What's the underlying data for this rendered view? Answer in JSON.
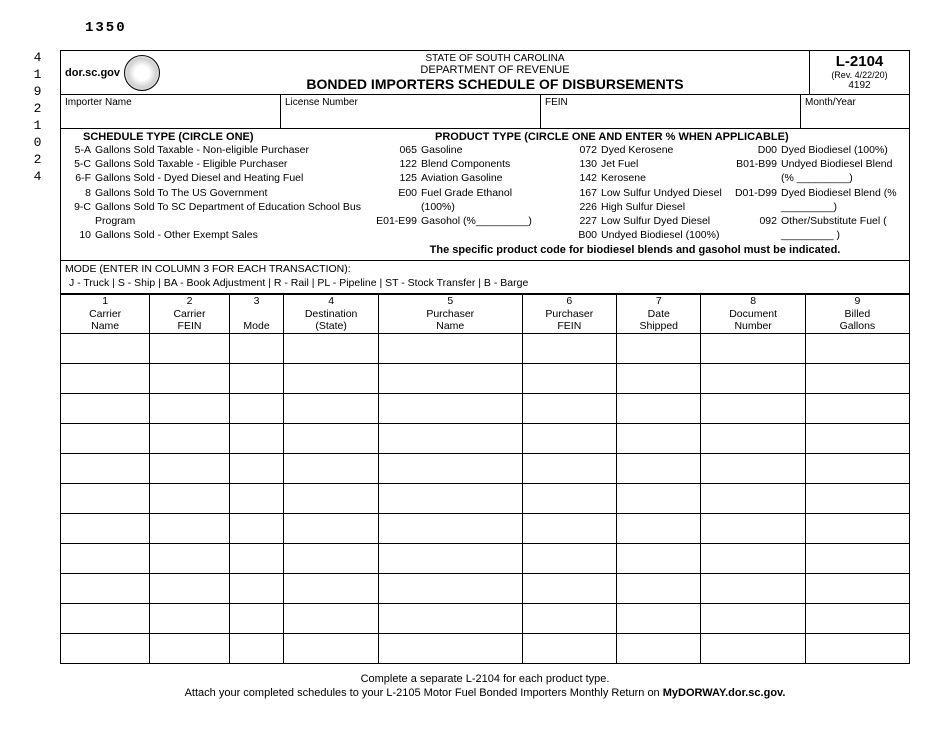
{
  "form_number_top": "1350",
  "side_number": "41921024",
  "header": {
    "url": "dor.sc.gov",
    "state_line": "STATE OF SOUTH CAROLINA",
    "dept_line": "DEPARTMENT OF REVENUE",
    "title": "BONDED IMPORTERS SCHEDULE OF DISBURSEMENTS",
    "form_code": "L-2104",
    "rev": "(Rev. 4/22/20)",
    "form_num": "4192"
  },
  "id_labels": {
    "importer": "Importer Name",
    "license": "License Number",
    "fein": "FEIN",
    "monthyear": "Month/Year"
  },
  "schedule": {
    "heading": "SCHEDULE TYPE  (CIRCLE ONE)",
    "items": [
      {
        "code": "5-A",
        "label": "Gallons Sold Taxable - Non-eligible Purchaser"
      },
      {
        "code": "5-C",
        "label": "Gallons Sold Taxable - Eligible Purchaser"
      },
      {
        "code": "6-F",
        "label": "Gallons Sold - Dyed Diesel and Heating Fuel"
      },
      {
        "code": "8",
        "label": "Gallons Sold To The US Government"
      },
      {
        "code": "9-C",
        "label": "Gallons Sold To SC Department of Education School Bus Program"
      },
      {
        "code": "10",
        "label": "Gallons Sold - Other Exempt Sales"
      }
    ]
  },
  "product": {
    "heading": "PRODUCT TYPE (CIRCLE ONE AND ENTER % WHEN APPLICABLE)",
    "columns": [
      [
        {
          "code": "065",
          "label": "Gasoline"
        },
        {
          "code": "122",
          "label": "Blend Components"
        },
        {
          "code": "125",
          "label": "Aviation Gasoline"
        },
        {
          "code": "E00",
          "label": "Fuel Grade Ethanol (100%)"
        },
        {
          "code": "E01-E99",
          "label": "Gasohol (%_________)"
        }
      ],
      [
        {
          "code": "072",
          "label": "Dyed Kerosene"
        },
        {
          "code": "130",
          "label": "Jet Fuel"
        },
        {
          "code": "142",
          "label": "Kerosene"
        },
        {
          "code": "167",
          "label": "Low Sulfur Undyed Diesel"
        },
        {
          "code": "226",
          "label": "High Sulfur Diesel"
        },
        {
          "code": "227",
          "label": "Low Sulfur Dyed Diesel"
        },
        {
          "code": "B00",
          "label": "Undyed Biodiesel (100%)"
        }
      ],
      [
        {
          "code": "D00",
          "label": "Dyed Biodiesel (100%)"
        },
        {
          "code": "B01-B99",
          "label": "Undyed Biodiesel Blend (% _________)"
        },
        {
          "code": "D01-D99",
          "label": "Dyed Biodiesel Blend (% _________)"
        },
        {
          "code": "092",
          "label": "Other/Substitute Fuel ( _________ )"
        }
      ]
    ],
    "note": "The specific product code for biodiesel blends and gasohol must be indicated."
  },
  "mode": {
    "heading": "MODE (ENTER IN COLUMN 3 FOR EACH TRANSACTION):",
    "codes": "J - Truck | S - Ship | BA - Book Adjustment | R - Rail | PL - Pipeline | ST - Stock Transfer | B - Barge"
  },
  "table": {
    "headers": [
      {
        "num": "1",
        "label1": "Carrier",
        "label2": "Name"
      },
      {
        "num": "2",
        "label1": "Carrier",
        "label2": "FEIN"
      },
      {
        "num": "3",
        "label1": "",
        "label2": "Mode"
      },
      {
        "num": "4",
        "label1": "Destination",
        "label2": "(State)"
      },
      {
        "num": "5",
        "label1": "Purchaser",
        "label2": "Name"
      },
      {
        "num": "6",
        "label1": "Purchaser",
        "label2": "FEIN"
      },
      {
        "num": "7",
        "label1": "Date",
        "label2": "Shipped"
      },
      {
        "num": "8",
        "label1": "Document",
        "label2": "Number"
      },
      {
        "num": "9",
        "label1": "Billed",
        "label2": "Gallons"
      }
    ],
    "row_count": 11
  },
  "footer": {
    "line1": "Complete a separate L-2104 for each product type.",
    "line2_a": "Attach your completed schedules to your L-2105 Motor Fuel Bonded Importers Monthly Return on ",
    "line2_b": "MyDORWAY.dor.sc.gov."
  }
}
